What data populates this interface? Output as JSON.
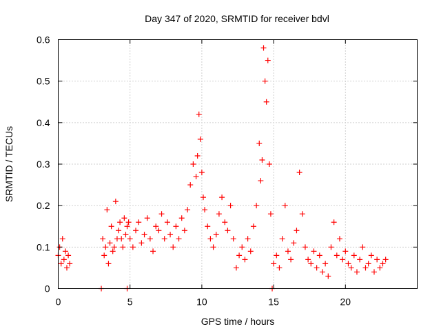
{
  "chart_data": {
    "type": "scatter",
    "title": "Day 347 of 2020, SRMTID for receiver bdvl",
    "xlabel": "GPS time / hours",
    "ylabel": "SRMTID / TECUs",
    "xlim": [
      0,
      25
    ],
    "ylim": [
      0,
      0.6
    ],
    "xticks": [
      0,
      5,
      10,
      15,
      20
    ],
    "xtick_labels": [
      "0",
      "5",
      "10",
      "15",
      "20"
    ],
    "yticks": [
      0,
      0.1,
      0.2,
      0.3,
      0.4,
      0.5,
      0.6
    ],
    "ytick_labels": [
      "0",
      "0.1",
      "0.2",
      "0.3",
      "0.4",
      "0.5",
      "0.6"
    ],
    "grid": true,
    "marker": "+",
    "marker_color": "#ff0000",
    "series": [
      {
        "name": "SRMTID",
        "x": [
          0.0,
          0.1,
          0.2,
          0.3,
          0.4,
          0.5,
          0.6,
          0.7,
          0.8,
          3.1,
          3.2,
          3.3,
          3.4,
          3.5,
          3.6,
          3.7,
          3.8,
          3.9,
          4.0,
          4.1,
          4.2,
          4.3,
          4.4,
          4.5,
          4.6,
          4.7,
          4.8,
          4.9,
          5.0,
          5.2,
          5.4,
          5.6,
          5.8,
          6.0,
          6.2,
          6.4,
          6.6,
          6.8,
          7.0,
          7.2,
          7.4,
          7.6,
          7.8,
          8.0,
          8.2,
          8.4,
          8.6,
          8.8,
          9.0,
          9.2,
          9.4,
          9.6,
          9.7,
          9.8,
          9.9,
          10.0,
          10.1,
          10.2,
          10.4,
          10.6,
          10.8,
          11.0,
          11.2,
          11.4,
          11.6,
          11.8,
          12.0,
          12.2,
          12.4,
          12.6,
          12.8,
          13.0,
          13.2,
          13.4,
          13.6,
          13.8,
          14.0,
          14.1,
          14.2,
          14.3,
          14.4,
          14.5,
          14.6,
          14.7,
          14.8,
          15.0,
          15.2,
          15.4,
          15.6,
          15.8,
          16.0,
          16.2,
          16.4,
          16.6,
          16.8,
          17.0,
          17.2,
          17.4,
          17.6,
          17.8,
          18.0,
          18.2,
          18.4,
          18.6,
          18.8,
          19.0,
          19.2,
          19.4,
          19.6,
          19.8,
          20.0,
          20.2,
          20.4,
          20.6,
          20.8,
          21.0,
          21.2,
          21.4,
          21.6,
          21.8,
          22.0,
          22.2,
          22.4,
          22.6,
          22.8,
          3.0,
          4.8,
          14.9
        ],
        "y": [
          0.08,
          0.1,
          0.06,
          0.12,
          0.07,
          0.09,
          0.05,
          0.08,
          0.06,
          0.12,
          0.08,
          0.1,
          0.19,
          0.06,
          0.11,
          0.15,
          0.09,
          0.1,
          0.21,
          0.12,
          0.14,
          0.16,
          0.12,
          0.1,
          0.17,
          0.13,
          0.15,
          0.16,
          0.12,
          0.1,
          0.14,
          0.16,
          0.11,
          0.13,
          0.17,
          0.12,
          0.09,
          0.15,
          0.14,
          0.18,
          0.12,
          0.16,
          0.13,
          0.1,
          0.15,
          0.12,
          0.17,
          0.14,
          0.19,
          0.25,
          0.3,
          0.27,
          0.32,
          0.42,
          0.36,
          0.28,
          0.22,
          0.19,
          0.15,
          0.12,
          0.1,
          0.13,
          0.18,
          0.22,
          0.16,
          0.14,
          0.2,
          0.12,
          0.05,
          0.08,
          0.1,
          0.07,
          0.12,
          0.09,
          0.15,
          0.2,
          0.35,
          0.26,
          0.31,
          0.58,
          0.5,
          0.45,
          0.55,
          0.3,
          0.18,
          0.06,
          0.08,
          0.05,
          0.12,
          0.2,
          0.09,
          0.07,
          0.11,
          0.14,
          0.28,
          0.18,
          0.1,
          0.07,
          0.06,
          0.09,
          0.05,
          0.08,
          0.04,
          0.06,
          0.03,
          0.1,
          0.16,
          0.08,
          0.12,
          0.07,
          0.09,
          0.06,
          0.05,
          0.08,
          0.04,
          0.07,
          0.1,
          0.05,
          0.06,
          0.08,
          0.04,
          0.07,
          0.05,
          0.06,
          0.07,
          0.0,
          0.0,
          0.0
        ]
      }
    ]
  }
}
